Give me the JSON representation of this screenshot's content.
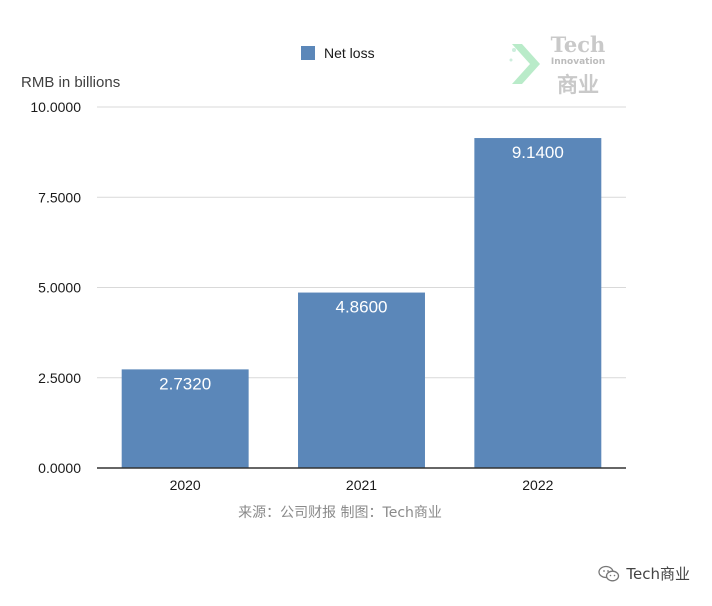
{
  "chart_data": {
    "type": "bar",
    "title": "",
    "ylabel": "RMB in billions",
    "xlabel": "",
    "categories": [
      "2020",
      "2021",
      "2022"
    ],
    "series": [
      {
        "name": "Net loss",
        "values": [
          2.732,
          4.86,
          9.14
        ],
        "labels": [
          "2.7320",
          "4.8600",
          "9.1400"
        ],
        "color": "#5b87b9"
      }
    ],
    "ylim": [
      0,
      10
    ],
    "yticks": [
      0,
      2.5,
      5,
      7.5,
      10
    ],
    "ytick_labels": [
      "0.0000",
      "2.5000",
      "5.0000",
      "7.5000",
      "10.0000"
    ],
    "grid": true,
    "legend_position": "top-center",
    "source_note": "来源：公司财报 制图：Tech商业",
    "gridline_color": "#d9d9d9",
    "axis_color": "#333333",
    "label_color": "#ffffff"
  },
  "watermark": {
    "brand_en": "Tech",
    "brand_mid": "Innovation",
    "brand_cn": "商业",
    "accent_color": "#b9ebc9",
    "icon": "chevron-logo-icon"
  },
  "footer": {
    "brand": "Tech商业",
    "icon": "wechat-icon"
  }
}
